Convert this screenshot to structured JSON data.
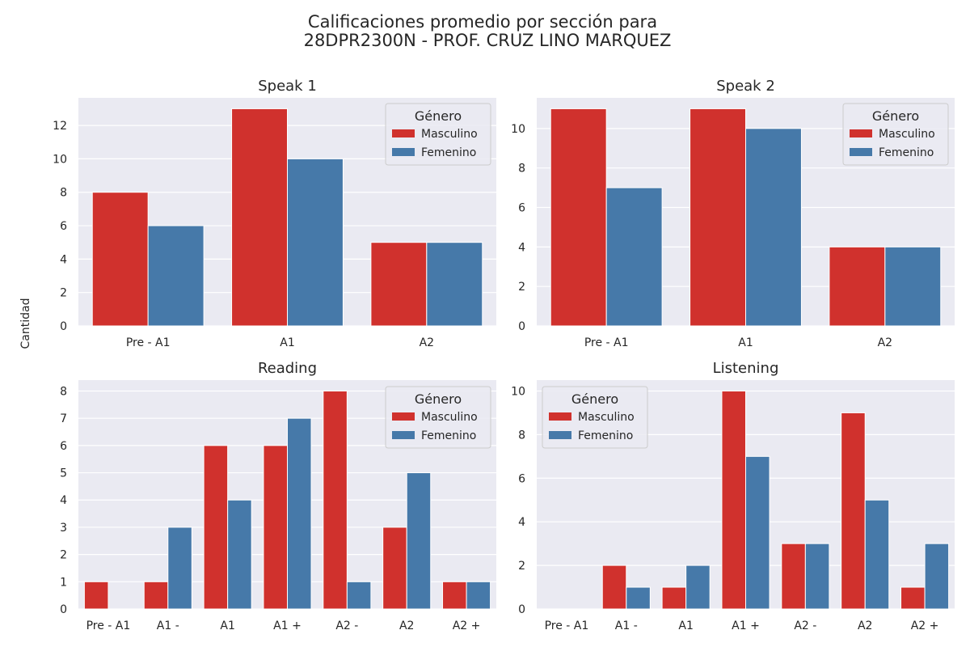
{
  "figure": {
    "title_line1": "Calificaciones promedio por sección para",
    "title_line2": "28DPR2300N - PROF. CRUZ LINO MARQUEZ",
    "ylabel": "Cantidad"
  },
  "colors": {
    "masculino": "#d0312d",
    "femenino": "#4679a9",
    "plot_bg": "#eaeaf2",
    "grid": "#ffffff",
    "text": "#262626"
  },
  "chart_data": [
    {
      "type": "bar",
      "title": "Speak 1",
      "categories": [
        "Pre - A1",
        "A1",
        "A2"
      ],
      "series": [
        {
          "name": "Masculino",
          "values": [
            8,
            13,
            5
          ]
        },
        {
          "name": "Femenino",
          "values": [
            6,
            10,
            5
          ]
        }
      ],
      "ylim": [
        0,
        13.65
      ],
      "yticks": [
        0,
        2,
        4,
        6,
        8,
        10,
        12
      ],
      "legend_title": "Género",
      "legend_loc": "upper right",
      "grid": true
    },
    {
      "type": "bar",
      "title": "Speak 2",
      "categories": [
        "Pre - A1",
        "A1",
        "A2"
      ],
      "series": [
        {
          "name": "Masculino",
          "values": [
            11,
            11,
            4
          ]
        },
        {
          "name": "Femenino",
          "values": [
            7,
            10,
            4
          ]
        }
      ],
      "ylim": [
        0,
        11.55
      ],
      "yticks": [
        0,
        2,
        4,
        6,
        8,
        10
      ],
      "legend_title": "Género",
      "legend_loc": "upper right",
      "grid": true
    },
    {
      "type": "bar",
      "title": "Reading",
      "categories": [
        "Pre - A1",
        "A1 -",
        "A1",
        "A1 +",
        "A2 -",
        "A2",
        "A2 +"
      ],
      "series": [
        {
          "name": "Masculino",
          "values": [
            1,
            1,
            6,
            6,
            8,
            3,
            1
          ]
        },
        {
          "name": "Femenino",
          "values": [
            0,
            3,
            4,
            7,
            1,
            5,
            1
          ]
        }
      ],
      "ylim": [
        0,
        8.4
      ],
      "yticks": [
        0,
        1,
        2,
        3,
        4,
        5,
        6,
        7,
        8
      ],
      "legend_title": "Género",
      "legend_loc": "upper right",
      "grid": true
    },
    {
      "type": "bar",
      "title": "Listening",
      "categories": [
        "Pre - A1",
        "A1 -",
        "A1",
        "A1 +",
        "A2 -",
        "A2",
        "A2 +"
      ],
      "series": [
        {
          "name": "Masculino",
          "values": [
            0,
            2,
            1,
            10,
            3,
            9,
            1
          ]
        },
        {
          "name": "Femenino",
          "values": [
            0,
            1,
            2,
            7,
            3,
            5,
            3
          ]
        }
      ],
      "ylim": [
        0,
        10.5
      ],
      "yticks": [
        0,
        2,
        4,
        6,
        8,
        10
      ],
      "legend_title": "Género",
      "legend_loc": "upper left",
      "grid": true
    }
  ]
}
